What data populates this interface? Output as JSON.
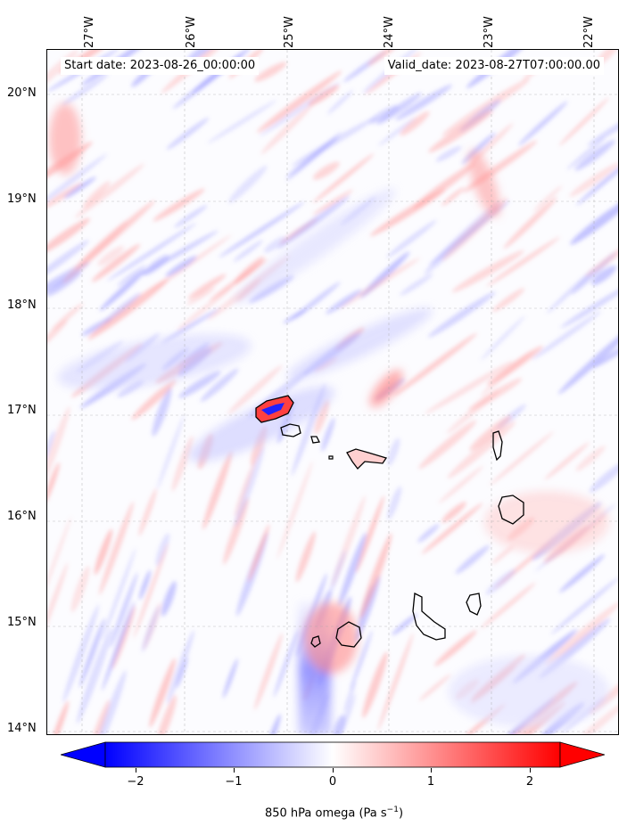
{
  "header": {
    "start_date": "Start date: 2023-08-26_00:00:00",
    "valid_date": "Valid_date: 2023-08-27T07:00:00.00"
  },
  "axes": {
    "longitude_labels": [
      "27°W",
      "26°W",
      "25°W",
      "24°W",
      "23°W",
      "22°W"
    ],
    "latitude_labels": [
      "20°N",
      "19°N",
      "18°N",
      "17°N",
      "16°N",
      "15°N",
      "14°N"
    ]
  },
  "colorbar": {
    "label_prefix": "850 hPa omega (Pa s",
    "label_exp": "−1",
    "label_suffix": ")",
    "ticks": [
      "−2",
      "−1",
      "0",
      "1",
      "2"
    ],
    "range": [
      -2.6,
      2.6
    ],
    "colors": {
      "min": "#0000ff",
      "mid": "#ffffff",
      "max": "#ff0000"
    }
  },
  "map": {
    "type": "filled-contour",
    "variable": "850 hPa omega",
    "lon_range": [
      -27.3,
      -21.9
    ],
    "lat_range": [
      13.95,
      20.45
    ],
    "gridlines": true,
    "land_outline_color": "#000000"
  }
}
